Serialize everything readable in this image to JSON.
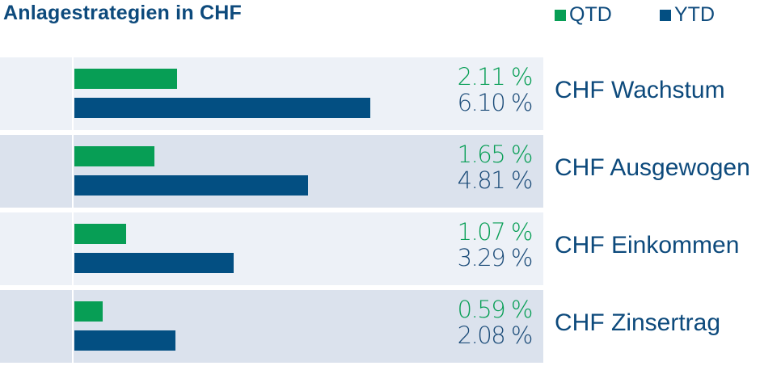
{
  "chart_data": {
    "type": "bar",
    "orientation": "horizontal",
    "title": "Anlagestrategien in CHF",
    "categories": [
      "CHF Wachstum",
      "CHF Ausgewogen",
      "CHF Einkommen",
      "CHF Zinsertrag"
    ],
    "series": [
      {
        "name": "QTD",
        "color": "#079e55",
        "values": [
          2.11,
          1.65,
          1.07,
          0.59
        ],
        "labels": [
          "2.11 %",
          "1.65 %",
          "1.07 %",
          "0.59 %"
        ]
      },
      {
        "name": "YTD",
        "color": "#034f82",
        "values": [
          6.1,
          4.81,
          3.29,
          2.08
        ],
        "labels": [
          "6.10 %",
          "4.81 %",
          "3.29 %",
          "2.08 %"
        ]
      }
    ],
    "row_colors": [
      "#edf1f7",
      "#dbe2ed",
      "#edf1f7",
      "#dbe2ed"
    ],
    "legend": "top-right"
  },
  "colors": {
    "title": "#0d4a7c",
    "label": "#0d4a7c",
    "ytd_text": "#1c4c79"
  }
}
